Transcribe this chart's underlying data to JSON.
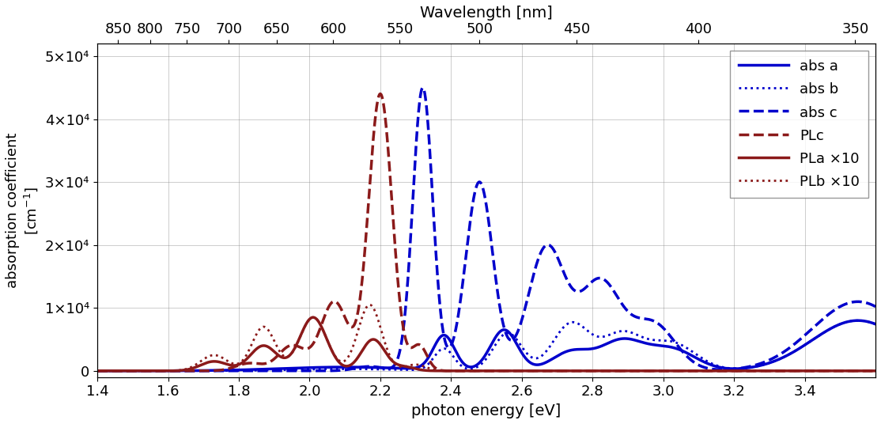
{
  "xlabel": "photon energy [eV]",
  "xlabel_top": "Wavelength [nm]",
  "xlim": [
    1.4,
    3.6
  ],
  "ylim": [
    -1000,
    52000
  ],
  "yticks": [
    0,
    10000,
    20000,
    30000,
    40000,
    50000
  ],
  "ytick_labels": [
    "0",
    "1×10⁴",
    "2×10⁴",
    "3×10⁴",
    "4×10⁴",
    "5×10⁴"
  ],
  "xticks_bottom": [
    1.4,
    1.6,
    1.8,
    2.0,
    2.2,
    2.4,
    2.6,
    2.8,
    3.0,
    3.2,
    3.4
  ],
  "xticks_top_nm": [
    850,
    800,
    750,
    700,
    650,
    600,
    550,
    500,
    450,
    400,
    350
  ],
  "blue_color": "#0000CC",
  "red_color": "#8B1A1A",
  "line_width": 2.0,
  "legend_entries": [
    "abs a",
    "abs b",
    "abs c",
    "PLc",
    "PLa ×10",
    "PLb ×10"
  ]
}
